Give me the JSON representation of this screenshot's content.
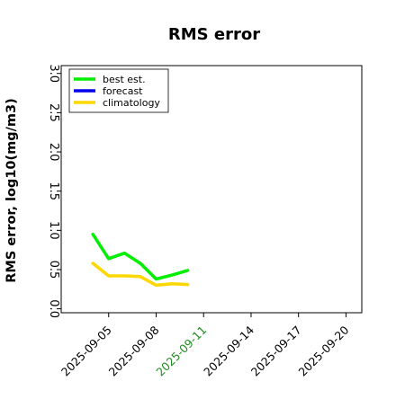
{
  "chart_data": {
    "type": "line",
    "title": "RMS error",
    "xlabel": "",
    "ylabel": "RMS error, log10(mg/m3)",
    "ylim": [
      -0.05,
      3.1
    ],
    "yticks": [
      "0.0",
      "0.5",
      "1.0",
      "1.5",
      "2.0",
      "2.5",
      "3.0"
    ],
    "ytick_values": [
      0.0,
      0.5,
      1.0,
      1.5,
      2.0,
      2.5,
      3.0
    ],
    "xlim": [
      "2025-09-02",
      "2025-09-21"
    ],
    "xticks": [
      {
        "label": "2025-09-05",
        "date": "2025-09-05",
        "color": "#000000"
      },
      {
        "label": "2025-09-08",
        "date": "2025-09-08",
        "color": "#000000"
      },
      {
        "label": "2025-09-11",
        "date": "2025-09-11",
        "color": "#228B22"
      },
      {
        "label": "2025-09-14",
        "date": "2025-09-14",
        "color": "#000000"
      },
      {
        "label": "2025-09-17",
        "date": "2025-09-17",
        "color": "#000000"
      },
      {
        "label": "2025-09-20",
        "date": "2025-09-20",
        "color": "#000000"
      }
    ],
    "legend_position": "top-left",
    "grid": false,
    "series": [
      {
        "name": "best est.",
        "color": "#00ee00",
        "x": [
          "2025-09-04",
          "2025-09-05",
          "2025-09-06",
          "2025-09-07",
          "2025-09-08",
          "2025-09-09",
          "2025-09-10"
        ],
        "y": [
          0.95,
          0.64,
          0.71,
          0.58,
          0.38,
          0.43,
          0.49
        ]
      },
      {
        "name": "forecast",
        "color": "#0000ee",
        "x": [],
        "y": []
      },
      {
        "name": "climatology",
        "color": "#ffd700",
        "x": [
          "2025-09-04",
          "2025-09-05",
          "2025-09-06",
          "2025-09-07",
          "2025-09-08",
          "2025-09-09",
          "2025-09-10"
        ],
        "y": [
          0.58,
          0.42,
          0.42,
          0.41,
          0.3,
          0.32,
          0.31
        ]
      }
    ]
  }
}
